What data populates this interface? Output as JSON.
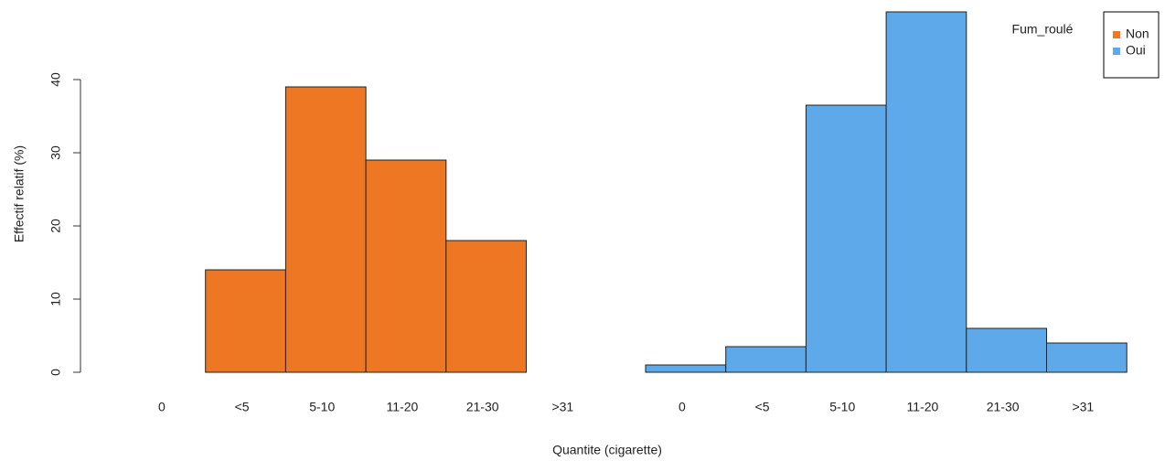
{
  "chart_data": {
    "type": "bar",
    "categories": [
      "0",
      "<5",
      "5-10",
      "11-20",
      "21-30",
      ">31"
    ],
    "series": [
      {
        "name": "Non",
        "color": "#ed7723",
        "values": [
          0,
          14,
          39,
          29,
          18,
          0
        ]
      },
      {
        "name": "Oui",
        "color": "#5da9e9",
        "values": [
          1,
          3.5,
          36.5,
          49.25,
          6,
          4
        ]
      }
    ],
    "ylim": [
      0,
      50
    ],
    "yticks": [
      0,
      10,
      20,
      30,
      40
    ],
    "y_label": "Effectif relatif (%)",
    "x_label": "Quantite (cigarette)",
    "legend_title": "Fum_roulé",
    "legend": "top-right"
  }
}
